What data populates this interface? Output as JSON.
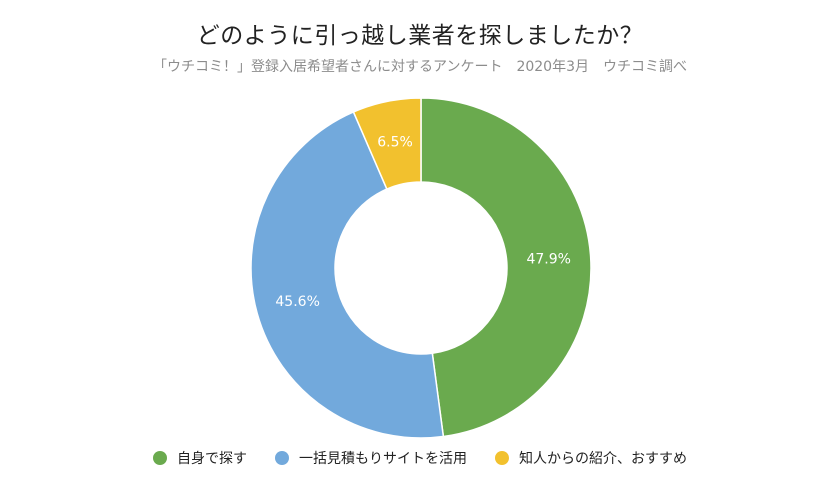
{
  "chart_data": {
    "type": "pie",
    "variant": "donut",
    "title": "どのように引っ越し業者を探しましたか？",
    "subtitle": "「ウチコミ！」登録入居希望者さんに対するアンケート　2020年3月　ウチコミ調べ",
    "slices": [
      {
        "label": "自身で探す",
        "value": 47.9,
        "display": "47.9%",
        "color": "#6aaa4e"
      },
      {
        "label": "一括見積もりサイトを活用",
        "value": 45.6,
        "display": "45.6%",
        "color": "#72a9dc"
      },
      {
        "label": "知人からの紹介、おすすめ",
        "value": 6.5,
        "display": "6.5%",
        "color": "#f2c12e"
      }
    ],
    "legend_position": "bottom"
  }
}
